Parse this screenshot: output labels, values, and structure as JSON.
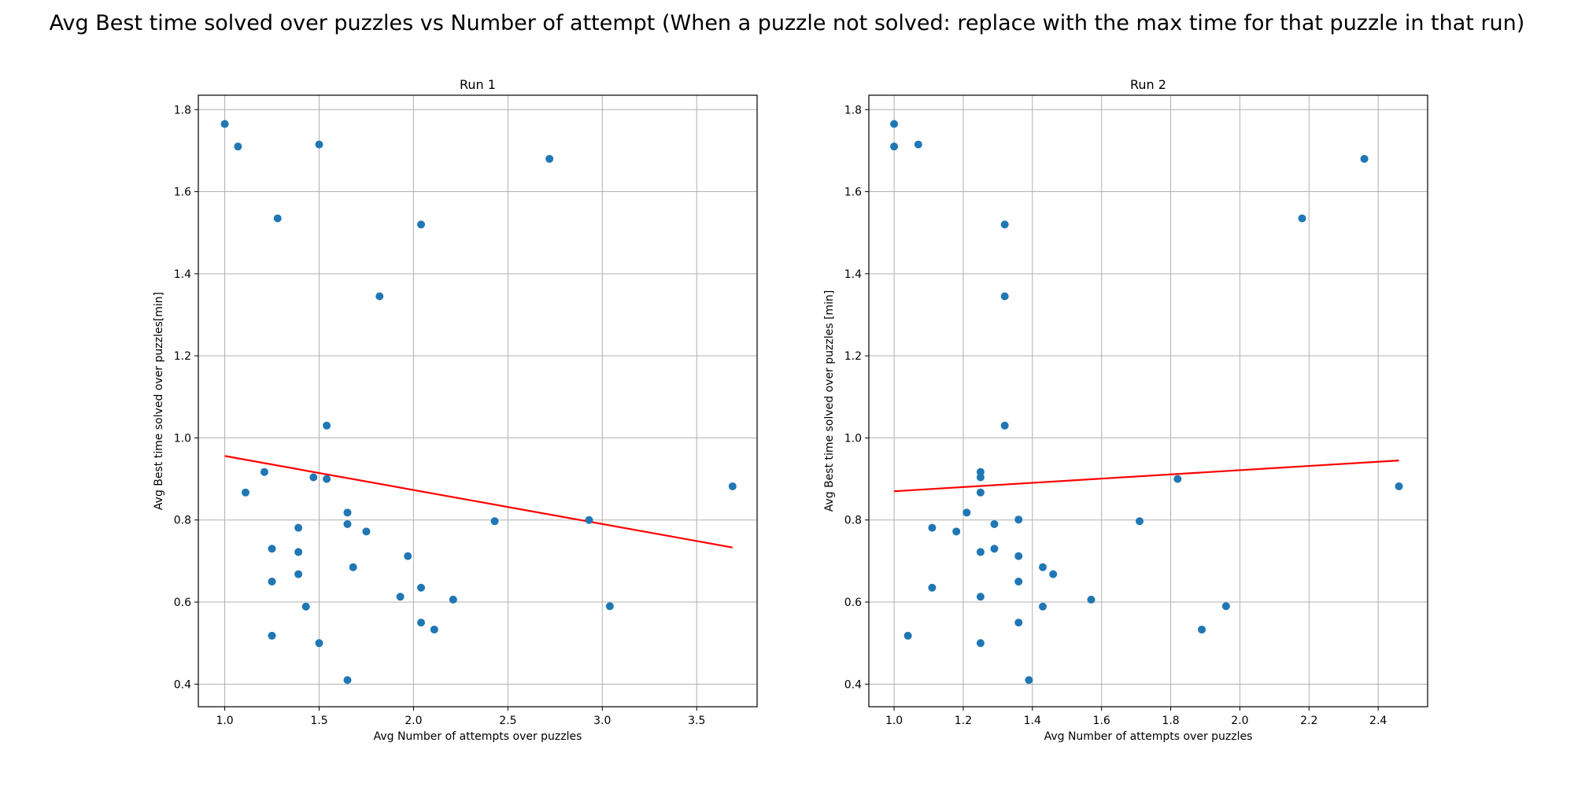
{
  "figure": {
    "title": "Avg Best time solved over puzzles vs Number of attempt (When a puzzle not solved: replace with the max time for that puzzle in that run)"
  },
  "colors": {
    "points": "#1f77b4",
    "fit_line": "#ff0000",
    "grid": "#b0b0b0"
  },
  "chart_data": [
    {
      "type": "scatter",
      "title": "Run 1",
      "xlabel": "Avg Number of attempts over puzzles",
      "ylabel": "Avg Best time solved over puzzles[min]",
      "xlim": [
        0.86,
        3.82
      ],
      "ylim": [
        0.345,
        1.835
      ],
      "xticks": [
        "1.0",
        "1.5",
        "2.0",
        "2.5",
        "3.0",
        "3.5"
      ],
      "yticks": [
        "0.4",
        "0.6",
        "0.8",
        "1.0",
        "1.2",
        "1.4",
        "1.6",
        "1.8"
      ],
      "grid": true,
      "points": [
        [
          1.0,
          1.765
        ],
        [
          1.07,
          1.71
        ],
        [
          1.5,
          1.715
        ],
        [
          2.72,
          1.68
        ],
        [
          1.28,
          1.535
        ],
        [
          2.04,
          1.52
        ],
        [
          1.82,
          1.345
        ],
        [
          1.54,
          1.03
        ],
        [
          1.21,
          0.917
        ],
        [
          1.47,
          0.904
        ],
        [
          1.54,
          0.9
        ],
        [
          1.11,
          0.867
        ],
        [
          3.69,
          0.882
        ],
        [
          1.65,
          0.818
        ],
        [
          2.93,
          0.8
        ],
        [
          2.43,
          0.797
        ],
        [
          1.65,
          0.79
        ],
        [
          1.39,
          0.781
        ],
        [
          1.75,
          0.772
        ],
        [
          1.25,
          0.73
        ],
        [
          1.39,
          0.722
        ],
        [
          1.97,
          0.712
        ],
        [
          1.68,
          0.685
        ],
        [
          1.39,
          0.668
        ],
        [
          1.25,
          0.65
        ],
        [
          2.04,
          0.635
        ],
        [
          1.93,
          0.613
        ],
        [
          2.21,
          0.606
        ],
        [
          1.43,
          0.589
        ],
        [
          3.04,
          0.59
        ],
        [
          2.04,
          0.55
        ],
        [
          2.11,
          0.533
        ],
        [
          1.25,
          0.518
        ],
        [
          1.5,
          0.5
        ],
        [
          1.65,
          0.41
        ]
      ],
      "fit_line": {
        "x": [
          1.0,
          3.69
        ],
        "y": [
          0.956,
          0.733
        ]
      }
    },
    {
      "type": "scatter",
      "title": "Run 2",
      "xlabel": "Avg Number of attempts over puzzles",
      "ylabel": "Avg Best time solved over puzzles [min]",
      "xlim": [
        0.927,
        2.543
      ],
      "ylim": [
        0.345,
        1.835
      ],
      "xticks": [
        "1.0",
        "1.2",
        "1.4",
        "1.6",
        "1.8",
        "2.0",
        "2.2",
        "2.4"
      ],
      "yticks": [
        "0.4",
        "0.6",
        "0.8",
        "1.0",
        "1.2",
        "1.4",
        "1.6",
        "1.8"
      ],
      "grid": true,
      "points": [
        [
          1.0,
          1.765
        ],
        [
          1.0,
          1.71
        ],
        [
          1.07,
          1.715
        ],
        [
          2.36,
          1.68
        ],
        [
          2.18,
          1.535
        ],
        [
          1.32,
          1.52
        ],
        [
          1.32,
          1.345
        ],
        [
          1.32,
          1.03
        ],
        [
          1.25,
          0.917
        ],
        [
          1.25,
          0.904
        ],
        [
          1.82,
          0.9
        ],
        [
          1.25,
          0.867
        ],
        [
          2.46,
          0.882
        ],
        [
          1.21,
          0.818
        ],
        [
          1.36,
          0.801
        ],
        [
          1.71,
          0.797
        ],
        [
          1.29,
          0.79
        ],
        [
          1.11,
          0.781
        ],
        [
          1.18,
          0.772
        ],
        [
          1.29,
          0.73
        ],
        [
          1.25,
          0.722
        ],
        [
          1.36,
          0.712
        ],
        [
          1.43,
          0.685
        ],
        [
          1.46,
          0.668
        ],
        [
          1.36,
          0.65
        ],
        [
          1.11,
          0.635
        ],
        [
          1.25,
          0.613
        ],
        [
          1.57,
          0.606
        ],
        [
          1.43,
          0.589
        ],
        [
          1.96,
          0.59
        ],
        [
          1.36,
          0.55
        ],
        [
          1.89,
          0.533
        ],
        [
          1.04,
          0.518
        ],
        [
          1.25,
          0.5
        ],
        [
          1.39,
          0.41
        ]
      ],
      "fit_line": {
        "x": [
          1.0,
          2.46
        ],
        "y": [
          0.87,
          0.945
        ]
      }
    }
  ]
}
